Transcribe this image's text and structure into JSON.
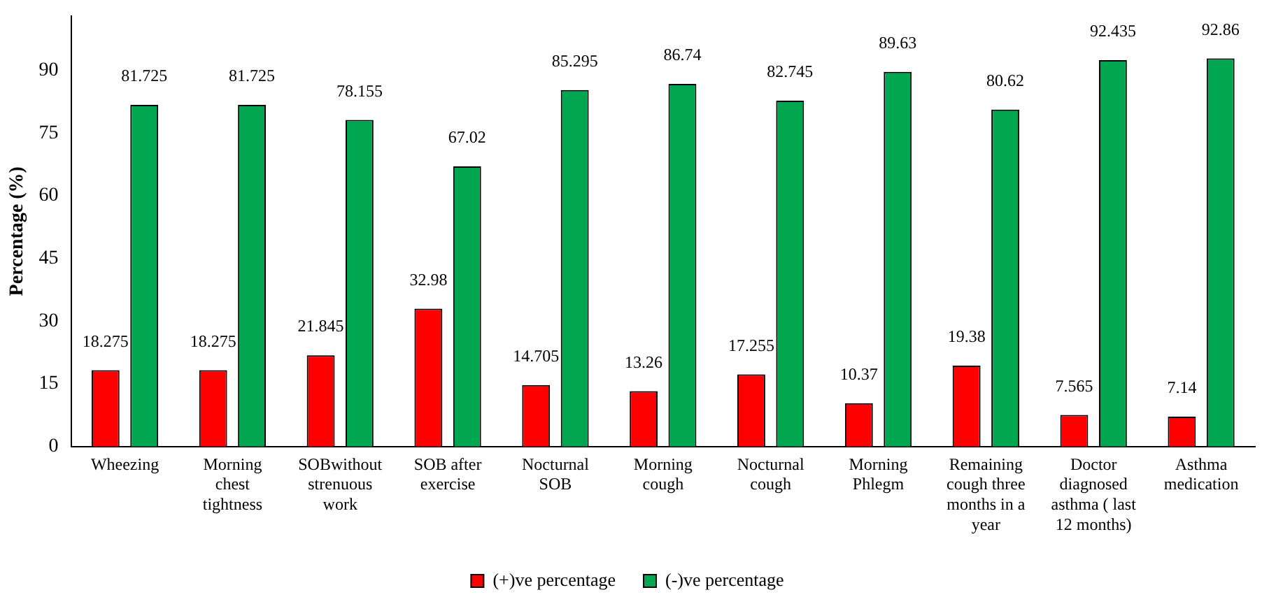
{
  "chart_data": {
    "type": "bar",
    "ylabel": "Percentage (%)",
    "categories": [
      "Wheezing",
      "Morning chest tightness",
      "SOBwithout strenuous work",
      "SOB after exercise",
      "Nocturnal SOB",
      "Morning cough",
      "Nocturnal cough",
      "Morning Phlegm",
      "Remaining cough three months in a year",
      "Doctor diagnosed asthma ( last 12 months)",
      "Asthma medication"
    ],
    "series": [
      {
        "name": "(+)ve percentage",
        "color": "#ff0000",
        "values": [
          18.275,
          18.275,
          21.845,
          32.98,
          14.705,
          13.26,
          17.255,
          10.37,
          19.38,
          7.565,
          7.14
        ]
      },
      {
        "name": "(-)ve percentage",
        "color": "#00a650",
        "values": [
          81.725,
          81.725,
          78.155,
          67.02,
          85.295,
          86.74,
          82.745,
          89.63,
          80.62,
          92.435,
          92.86
        ]
      }
    ],
    "ylim": [
      0,
      103
    ],
    "yticks": [
      0,
      15,
      30,
      45,
      60,
      75,
      90
    ],
    "grid": false,
    "legend": "bottom",
    "data_labels": true
  }
}
